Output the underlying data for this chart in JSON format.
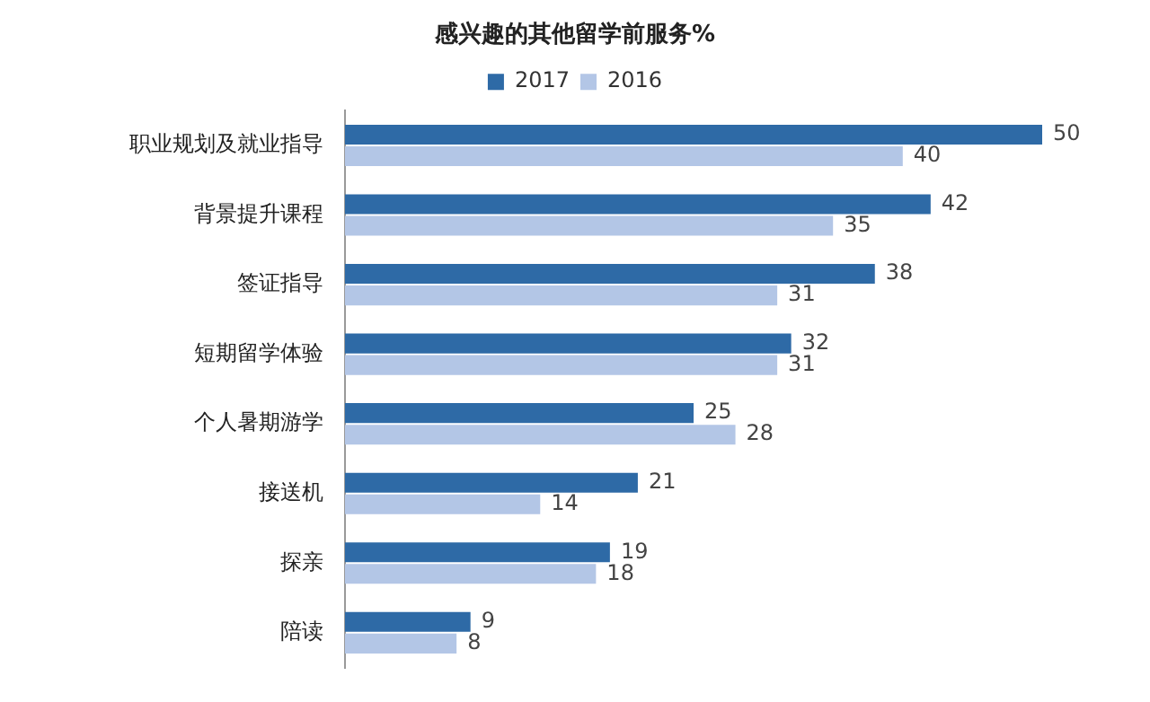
{
  "chart_data": {
    "type": "bar",
    "orientation": "horizontal",
    "title": "感兴趣的其他留学前服务%",
    "categories": [
      "职业规划及就业指导",
      "背景提升课程",
      "签证指导",
      "短期留学体验",
      "个人暑期游学",
      "接送机",
      "探亲",
      "陪读"
    ],
    "series": [
      {
        "name": "2017",
        "color": "#2e6aa6",
        "values": [
          50,
          42,
          38,
          32,
          25,
          21,
          19,
          9
        ]
      },
      {
        "name": "2016",
        "color": "#b3c6e6",
        "values": [
          40,
          35,
          31,
          31,
          28,
          14,
          18,
          8
        ]
      }
    ],
    "tick_labels": "y",
    "legend": "top",
    "data_labels": true
  }
}
